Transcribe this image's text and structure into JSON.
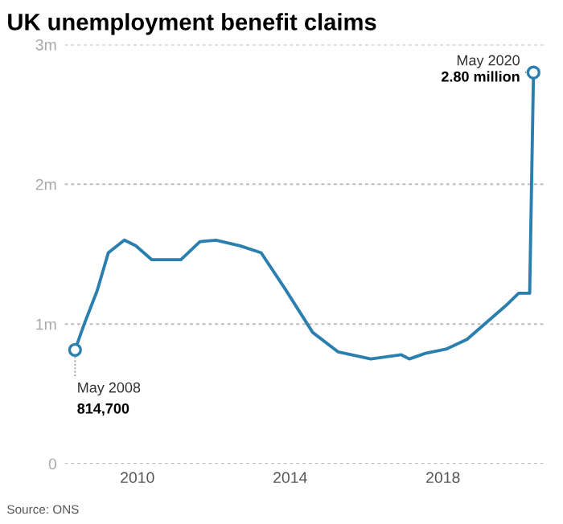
{
  "chart_data": {
    "type": "line",
    "title": "UK unemployment benefit claims",
    "x": [
      2008.37,
      2008.61,
      2008.95,
      2009.24,
      2009.66,
      2009.96,
      2010.38,
      2011.14,
      2011.64,
      2012.06,
      2012.69,
      2013.24,
      2013.87,
      2014.59,
      2015.26,
      2016.11,
      2016.91,
      2017.12,
      2017.54,
      2018.08,
      2018.63,
      2019.64,
      2019.98,
      2020.27,
      2020.37
    ],
    "series": [
      {
        "color": "#2b7fae",
        "values": [
          0.8147,
          1.0,
          1.24,
          1.51,
          1.6,
          1.56,
          1.46,
          1.46,
          1.59,
          1.6,
          1.56,
          1.51,
          1.25,
          0.94,
          0.8,
          0.75,
          0.78,
          0.75,
          0.79,
          0.82,
          0.89,
          1.13,
          1.22,
          1.22,
          2.8
        ]
      }
    ],
    "xlim": [
      2008.1,
      2020.7
    ],
    "xticks": [
      2010,
      2014,
      2018
    ],
    "ylim": [
      0,
      3
    ],
    "yticks": [
      {
        "value": 0,
        "label": "0"
      },
      {
        "value": 1,
        "label": "1m"
      },
      {
        "value": 2,
        "label": "2m"
      },
      {
        "value": 3,
        "label": "3m"
      }
    ],
    "grid": "y",
    "line_style": "solid",
    "annotations": [
      {
        "text": "May 2008\n814,700",
        "x": 2008.37,
        "y": 0.8147
      },
      {
        "text": "May 2020\n2.80 million",
        "x": 2020.37,
        "y": 2.8
      },
      "Source: ONS"
    ]
  }
}
